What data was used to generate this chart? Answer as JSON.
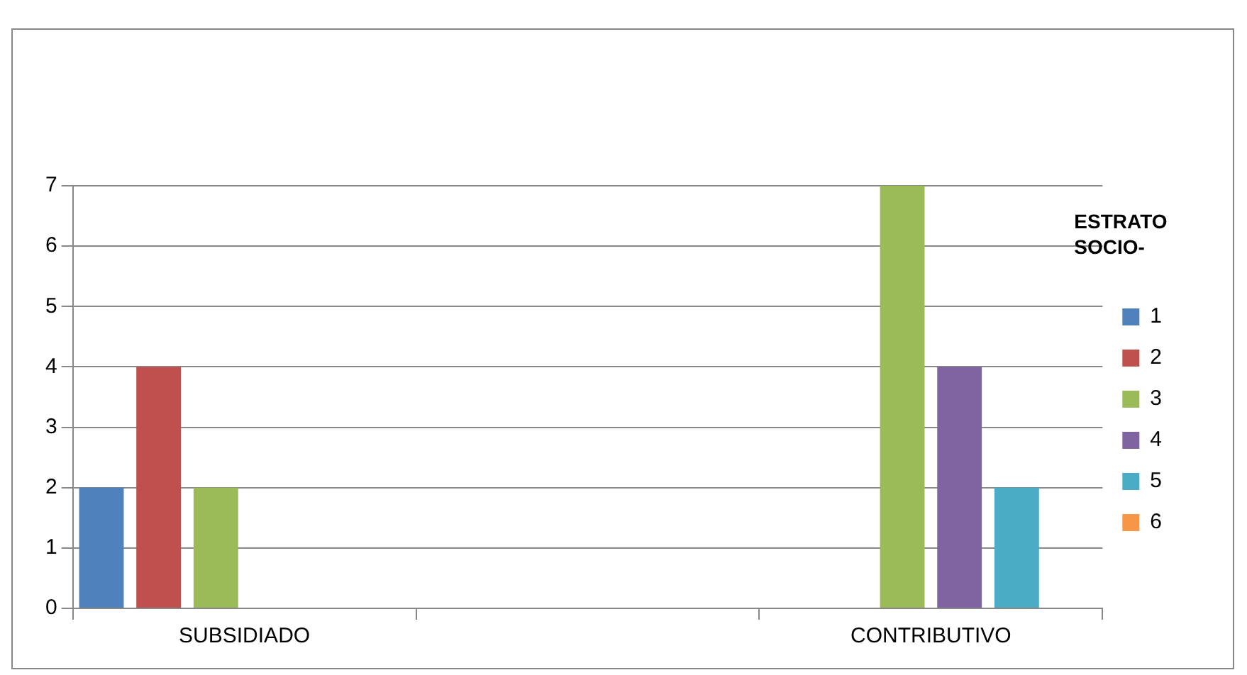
{
  "chart_data": {
    "type": "bar",
    "categories": [
      "SUBSIDIADO",
      null,
      "CONTRIBUTIVO"
    ],
    "series": [
      {
        "name": "1",
        "color": "#4f81bd",
        "values": [
          2,
          0,
          0
        ]
      },
      {
        "name": "2",
        "color": "#c0504d",
        "values": [
          4,
          0,
          0
        ]
      },
      {
        "name": "3",
        "color": "#9bbb59",
        "values": [
          2,
          0,
          7
        ]
      },
      {
        "name": "4",
        "color": "#8064a2",
        "values": [
          0,
          0,
          4
        ]
      },
      {
        "name": "5",
        "color": "#4bacc6",
        "values": [
          0,
          0,
          2
        ]
      },
      {
        "name": "6",
        "color": "#f79646",
        "values": [
          0,
          0,
          0
        ]
      }
    ],
    "ylim": [
      0,
      7
    ],
    "yticks": [
      0,
      1,
      2,
      3,
      4,
      5,
      6,
      7
    ],
    "grid": "y",
    "legend": "right",
    "legend_title": "ESTRATO SOCIO-"
  }
}
